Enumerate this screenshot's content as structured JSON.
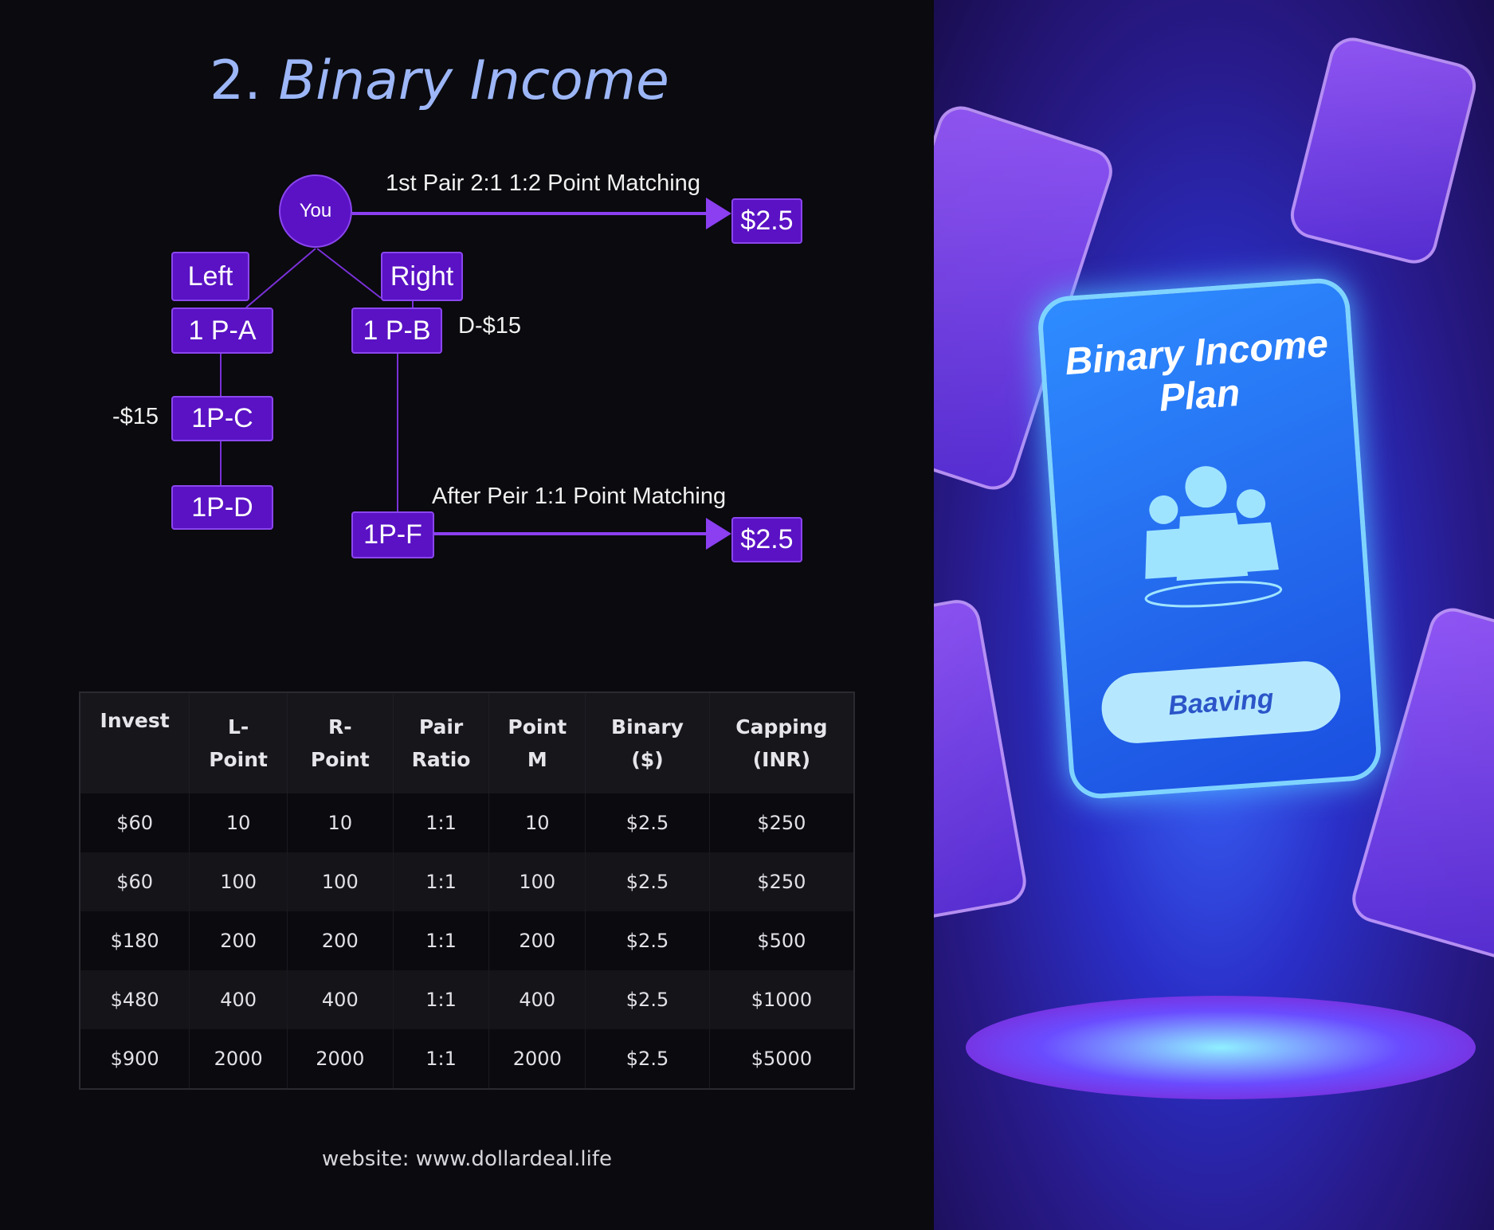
{
  "title": {
    "number": "2.",
    "text": "Binary Income"
  },
  "diagram": {
    "root": "You",
    "left_label": "Left",
    "right_label": "Right",
    "nodes": {
      "a": "1 P-A",
      "b": "1 P-B",
      "c": "1P-C",
      "d": "1P-D",
      "f": "1P-F"
    },
    "first_pair_text": "1st Pair 2:1  1:2  Point Matching",
    "after_pair_text": "After Peir 1:1  Point Matching",
    "first_reward": "$2.5",
    "after_reward": "$2.5",
    "b_note": "D-$15",
    "c_note": "-$15",
    "accent_color": "#5a12c4"
  },
  "table": {
    "headers": [
      [
        "Invest",
        ""
      ],
      [
        "L-",
        "Point"
      ],
      [
        "R-",
        "Point"
      ],
      [
        "Pair",
        "Ratio"
      ],
      [
        "Point",
        "M"
      ],
      [
        "Binary",
        "($)"
      ],
      [
        "Capping",
        "(INR)"
      ]
    ],
    "rows": [
      [
        "$60",
        "10",
        "10",
        "1:1",
        "10",
        "$2.5",
        "$250"
      ],
      [
        "$60",
        "100",
        "100",
        "1:1",
        "100",
        "$2.5",
        "$250"
      ],
      [
        "$180",
        "200",
        "200",
        "1:1",
        "200",
        "$2.5",
        "$500"
      ],
      [
        "$480",
        "400",
        "400",
        "1:1",
        "400",
        "$2.5",
        "$1000"
      ],
      [
        "$900",
        "2000",
        "2000",
        "1:1",
        "2000",
        "$2.5",
        "$5000"
      ]
    ]
  },
  "footer": {
    "website": "website: www.dollardeal.life"
  },
  "illustration": {
    "card_title": "Binary Income Plan",
    "card_button": "Baaving"
  }
}
